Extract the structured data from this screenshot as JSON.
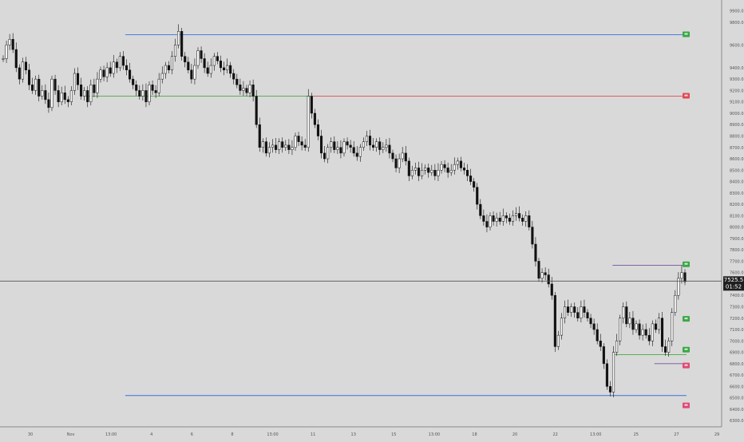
{
  "chart_data": {
    "type": "candlestick",
    "title": "",
    "grid": false,
    "x_ticks": [
      "30",
      "Nov",
      "13:00",
      "4",
      "6",
      "8",
      "13:00",
      "11",
      "13",
      "15",
      "13:00",
      "18",
      "20",
      "22",
      "13:00",
      "25",
      "27",
      "29"
    ],
    "y_ticks": [
      "9900.0",
      "9800.0",
      "9600.0",
      "9400.0",
      "9300.0",
      "9200.0",
      "9100.0",
      "9000.0",
      "8900.0",
      "8800.0",
      "8700.0",
      "8600.0",
      "8500.0",
      "8400.0",
      "8300.0",
      "8200.0",
      "8100.0",
      "8000.0",
      "7900.0",
      "7800.0",
      "7700.0",
      "7600.0",
      "7500.0",
      "7400.0",
      "7300.0",
      "7200.0",
      "7100.0",
      "7000.0",
      "6900.0",
      "6800.0",
      "6700.0",
      "6600.0",
      "6500.0",
      "6400.0",
      "6300.0"
    ],
    "price_range": [
      6280,
      9960
    ],
    "current_price": {
      "label": "7525.5",
      "value": 7525.5,
      "countdown": "01:52"
    },
    "levels": [
      {
        "value": 9690,
        "color": "#3a6fe0",
        "from_index": 0.18
      },
      {
        "value": 9150,
        "color": "#e04a4a",
        "from_index": 0.45
      },
      {
        "value": 9150,
        "color": "#44aa44",
        "from_index": 0.12,
        "to_index": 0.45
      },
      {
        "value": 6520,
        "color": "#3a6fe0",
        "from_index": 0.18
      },
      {
        "value": 7665,
        "color": "#7a4fa0",
        "from_index": 0.88
      },
      {
        "value": 6880,
        "color": "#44aa44",
        "from_index": 0.88
      },
      {
        "value": 6800,
        "color": "#7a4fa0",
        "from_index": 0.94
      }
    ],
    "markers": [
      {
        "value": 9690,
        "color": "#3aa845"
      },
      {
        "value": 9150,
        "color": "#e04a55"
      },
      {
        "value": 7670,
        "color": "#3aa845"
      },
      {
        "value": 7190,
        "color": "#3aa845"
      },
      {
        "value": 6920,
        "color": "#3aa845"
      },
      {
        "value": 6780,
        "color": "#e04a75"
      },
      {
        "value": 6430,
        "color": "#e04a75"
      }
    ],
    "series": [
      {
        "values": [
          9480,
          9600,
          9650,
          9560,
          9400,
          9300,
          9450,
          9380,
          9250,
          9200,
          9300,
          9150,
          9200,
          9120,
          9050,
          9300,
          9200,
          9100,
          9180,
          9120,
          9100,
          9200,
          9350,
          9250,
          9150,
          9200,
          9100,
          9250,
          9180,
          9300,
          9380,
          9320,
          9400,
          9350,
          9450,
          9400,
          9500,
          9420,
          9380,
          9300,
          9250,
          9200,
          9150,
          9200,
          9100,
          9250,
          9200,
          9180,
          9300,
          9350,
          9420,
          9380,
          9500,
          9600,
          9720,
          9500,
          9450,
          9380,
          9300,
          9420,
          9550,
          9480,
          9400,
          9350,
          9420,
          9500,
          9460,
          9400,
          9380,
          9420,
          9350,
          9300,
          9250,
          9200,
          9220,
          9180,
          9250,
          9150,
          8900,
          8700,
          8750,
          8650,
          8700,
          8720,
          8680,
          8750,
          8700,
          8720,
          8680,
          8700,
          8800,
          8750,
          8720,
          8700,
          9150,
          9000,
          8900,
          8800,
          8650,
          8600,
          8700,
          8750,
          8680,
          8700,
          8650,
          8750,
          8720,
          8700,
          8650,
          8620,
          8700,
          8750,
          8800,
          8720,
          8700,
          8750,
          8680,
          8700,
          8720,
          8650,
          8600,
          8520,
          8600,
          8650,
          8580,
          8450,
          8500,
          8520,
          8450,
          8500,
          8520,
          8480,
          8500,
          8450,
          8500,
          8550,
          8520,
          8480,
          8500,
          8550,
          8580,
          8520,
          8500,
          8450,
          8400,
          8350,
          8200,
          8100,
          8050,
          8000,
          8100,
          8050,
          8080,
          8050,
          8100,
          8080,
          8050,
          8100,
          8120,
          8080,
          8050,
          8100,
          8000,
          7850,
          7700,
          7550,
          7600,
          7580,
          7500,
          7400,
          6950,
          7050,
          7200,
          7300,
          7250,
          7300,
          7250,
          7200,
          7300,
          7250,
          7200,
          7150,
          7100,
          7000,
          6950,
          6800,
          6600,
          6550,
          6900,
          7000,
          7200,
          7300,
          7150,
          7200,
          7100,
          7150,
          7050,
          7100,
          7050,
          7000,
          7150,
          7100,
          7200,
          6950,
          6900,
          7000,
          7250,
          7400,
          7550,
          7600,
          7520
        ]
      }
    ]
  }
}
